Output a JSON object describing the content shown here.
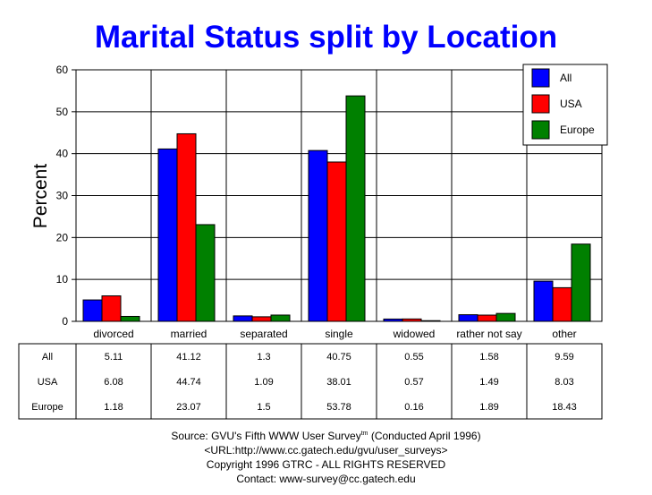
{
  "chart_data": {
    "type": "bar",
    "title": "Marital Status split by Location",
    "ylabel": "Percent",
    "xlabel": "",
    "ylim": [
      0,
      60
    ],
    "yticks": [
      0,
      10,
      20,
      30,
      40,
      50,
      60
    ],
    "grid": true,
    "legend_position": "top-right",
    "categories": [
      "divorced",
      "married",
      "separated",
      "single",
      "widowed",
      "rather not say",
      "other"
    ],
    "series": [
      {
        "name": "All",
        "color": "#0000ff",
        "values": [
          5.11,
          41.12,
          1.3,
          40.75,
          0.55,
          1.58,
          9.59
        ],
        "labels": [
          "5.11",
          "41.12",
          "1.3",
          "40.75",
          "0.55",
          "1.58",
          "9.59"
        ]
      },
      {
        "name": "USA",
        "color": "#ff0000",
        "values": [
          6.08,
          44.74,
          1.09,
          38.01,
          0.57,
          1.49,
          8.03
        ],
        "labels": [
          "6.08",
          "44.74",
          "1.09",
          "38.01",
          "0.57",
          "1.49",
          "8.03"
        ]
      },
      {
        "name": "Europe",
        "color": "#008000",
        "values": [
          1.18,
          23.07,
          1.5,
          53.78,
          0.16,
          1.89,
          18.43
        ],
        "labels": [
          "1.18",
          "23.07",
          "1.5",
          "53.78",
          "0.16",
          "1.89",
          "18.43"
        ]
      }
    ]
  },
  "footer": {
    "source_line": "Source: GVU's Fifth WWW User Survey",
    "source_sup": "tm",
    "source_conducted": " (Conducted April 1996)",
    "url_line": "<URL:http://www.cc.gatech.edu/gvu/user_surveys>",
    "copyright_line": "Copyright 1996 GTRC -  ALL RIGHTS RESERVED",
    "contact_line": "Contact: www-survey@cc.gatech.edu"
  }
}
